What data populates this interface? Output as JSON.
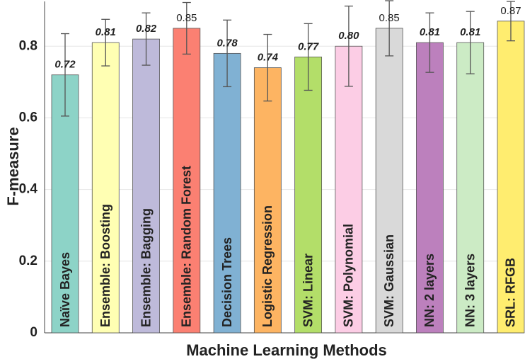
{
  "chart_data": {
    "type": "bar",
    "x_label": "Machine Learning Methods",
    "y_label": "F-measure",
    "categories": [
      "Naïve Bayes",
      "Ensemble: Boosting",
      "Ensemble: Bagging",
      "Ensemble: Random Forest",
      "Decision Trees",
      "Logistic Regression",
      "SVM: Linear",
      "SVM: Polynomial",
      "SVM: Gaussian",
      "NN: 2 layers",
      "NN: 3 layers",
      "SRL: RFGB"
    ],
    "values": [
      0.72,
      0.81,
      0.82,
      0.85,
      0.78,
      0.74,
      0.77,
      0.8,
      0.85,
      0.81,
      0.81,
      0.87
    ],
    "value_labels": [
      "0.72",
      "0.81",
      "0.82",
      "0.85",
      "0.78",
      "0.74",
      "0.77",
      "0.80",
      "0.85",
      "0.81",
      "0.81",
      "0.87"
    ],
    "value_label_bold": [
      true,
      true,
      true,
      false,
      true,
      true,
      true,
      true,
      false,
      true,
      true,
      false
    ],
    "errors": [
      0.115,
      0.065,
      0.073,
      0.072,
      0.093,
      0.093,
      0.093,
      0.112,
      0.077,
      0.083,
      0.087,
      0.055
    ],
    "colors": [
      "#8dd3c7",
      "#ffffb3",
      "#bebada",
      "#fb8072",
      "#80b1d3",
      "#fdb462",
      "#b3de69",
      "#fccde5",
      "#d9d9d9",
      "#bc80bd",
      "#ccebc5",
      "#ffed6f"
    ],
    "ylim": [
      0,
      0.925
    ],
    "yticks": [
      0,
      0.2,
      0.4,
      0.6,
      0.8
    ],
    "grid": true
  }
}
